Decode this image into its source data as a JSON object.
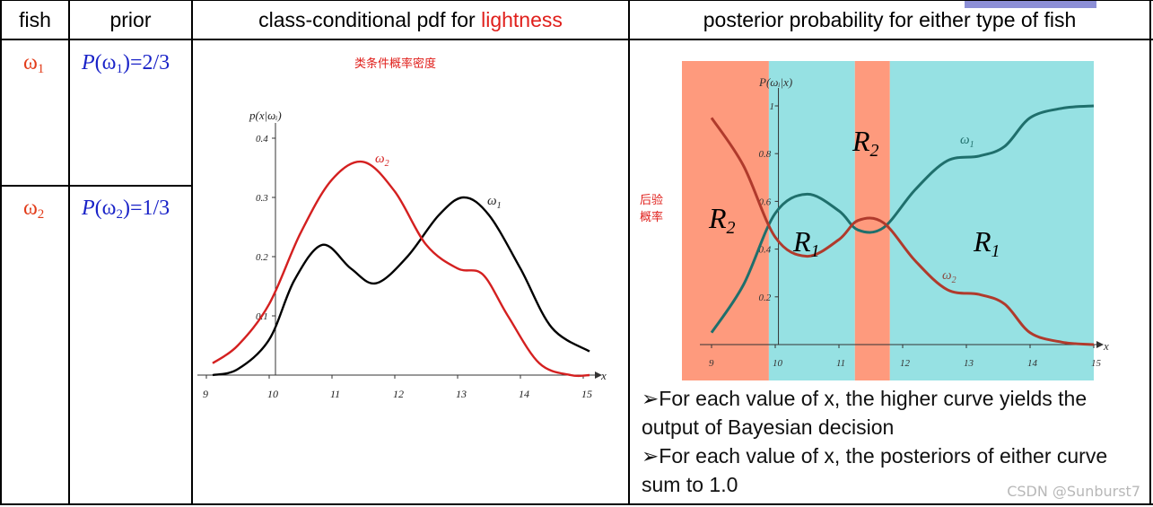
{
  "header": {
    "col_fish": "fish",
    "col_prior": "prior",
    "col_pdf_prefix": "class-conditional pdf for ",
    "col_pdf_highlight": "lightness",
    "col_posterior": "posterior probability for either type of fish"
  },
  "rows": [
    {
      "fish": "ω",
      "fish_sub": "1",
      "prior_p": "P",
      "prior_open": "(ω",
      "prior_sub": "1",
      "prior_val": ")=2/3"
    },
    {
      "fish": "ω",
      "fish_sub": "2",
      "prior_p": "P",
      "prior_open": "(ω",
      "prior_sub": "2",
      "prior_val": ")=1/3"
    }
  ],
  "pdf_chart": {
    "annotation": "类条件概率密度",
    "ylabel": "p(x|ωᵢ)",
    "xlabel": "x",
    "x_ticks": [
      "9",
      "10",
      "11",
      "12",
      "13",
      "14",
      "15"
    ],
    "y_ticks": [
      "0.1",
      "0.2",
      "0.3",
      "0.4"
    ],
    "label_w1": "ω",
    "label_w1_sub": "1",
    "label_w2": "ω",
    "label_w2_sub": "2"
  },
  "posterior_chart": {
    "side_label_line1": "后验",
    "side_label_line2": "概率",
    "ylabel": "P(ωᵢ|x)",
    "xlabel": "x",
    "x_ticks": [
      "9",
      "10",
      "11",
      "12",
      "13",
      "14",
      "15"
    ],
    "y_ticks": [
      "1",
      "0.8",
      "0.6",
      "0.4",
      "0.2"
    ],
    "region_labels": [
      "R",
      "R",
      "R",
      "R"
    ],
    "region_subs": [
      "2",
      "2",
      "1",
      "1"
    ],
    "label_w1": "ω",
    "label_w1_sub": "1",
    "label_w2": "ω",
    "label_w2_sub": "2"
  },
  "chart_data": [
    {
      "type": "line",
      "title": "",
      "xlabel": "x",
      "ylabel": "p(x|ωi)",
      "xlim": [
        9,
        15
      ],
      "ylim": [
        0,
        0.4
      ],
      "series": [
        {
          "name": "ω1",
          "color": "#000000",
          "x": [
            9.1,
            9.5,
            10.0,
            10.4,
            10.85,
            11.3,
            11.7,
            12.2,
            12.7,
            13.1,
            13.5,
            14.0,
            14.5,
            15.1
          ],
          "y": [
            0.0,
            0.01,
            0.06,
            0.16,
            0.22,
            0.18,
            0.155,
            0.2,
            0.27,
            0.3,
            0.27,
            0.18,
            0.08,
            0.04
          ]
        },
        {
          "name": "ω2",
          "color": "#d42020",
          "x": [
            9.1,
            9.5,
            10.0,
            10.5,
            11.0,
            11.5,
            12.0,
            12.5,
            13.0,
            13.4,
            13.8,
            14.3,
            14.8,
            15.1
          ],
          "y": [
            0.02,
            0.05,
            0.12,
            0.24,
            0.33,
            0.36,
            0.31,
            0.22,
            0.18,
            0.17,
            0.1,
            0.02,
            0.0,
            0.0
          ]
        }
      ]
    },
    {
      "type": "line",
      "title": "",
      "xlabel": "x",
      "ylabel": "P(ωi|x)",
      "xlim": [
        9,
        15
      ],
      "ylim": [
        0,
        1
      ],
      "series": [
        {
          "name": "ω1",
          "color": "#1f6f6c",
          "x": [
            9.0,
            9.5,
            10.0,
            10.5,
            11.0,
            11.3,
            11.7,
            12.2,
            12.7,
            13.2,
            13.6,
            14.0,
            14.5,
            15.0
          ],
          "y": [
            0.05,
            0.25,
            0.55,
            0.63,
            0.56,
            0.48,
            0.49,
            0.65,
            0.77,
            0.79,
            0.83,
            0.95,
            0.99,
            1.0
          ]
        },
        {
          "name": "ω2",
          "color": "#b03a2c",
          "x": [
            9.0,
            9.5,
            10.0,
            10.5,
            11.0,
            11.3,
            11.7,
            12.2,
            12.7,
            13.2,
            13.6,
            14.0,
            14.5,
            15.0
          ],
          "y": [
            0.95,
            0.75,
            0.45,
            0.37,
            0.44,
            0.52,
            0.51,
            0.35,
            0.23,
            0.21,
            0.17,
            0.05,
            0.01,
            0.0
          ]
        }
      ],
      "regions": [
        {
          "label": "R2",
          "x": [
            9.0,
            9.9
          ]
        },
        {
          "label": "R1",
          "x": [
            9.9,
            11.25
          ]
        },
        {
          "label": "R2",
          "x": [
            11.25,
            11.8
          ]
        },
        {
          "label": "R1",
          "x": [
            11.8,
            15.1
          ]
        }
      ]
    }
  ],
  "bullets": [
    "➢For each value of x, the higher curve yields the output of Bayesian decision",
    "➢For each value of x, the posteriors of either curve sum to 1.0"
  ],
  "watermark": "CSDN @Sunburst7",
  "colors": {
    "region_r2": "#fe9a7d",
    "region_r1": "#96e1e3",
    "accent_red": "#e0201c",
    "prior_blue": "#1a23c8"
  }
}
